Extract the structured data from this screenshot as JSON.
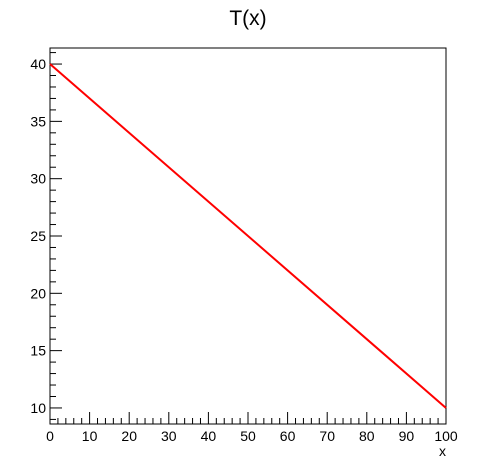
{
  "chart_data": {
    "type": "line",
    "title": "T(x)",
    "xlabel": "x",
    "ylabel": "",
    "xlim": [
      0,
      100
    ],
    "ylim": [
      8.6,
      41.4
    ],
    "x_ticks": [
      0,
      10,
      20,
      30,
      40,
      50,
      60,
      70,
      80,
      90,
      100
    ],
    "x_tick_labels": [
      "0",
      "10",
      "20",
      "30",
      "40",
      "50",
      "60",
      "70",
      "80",
      "90",
      "100"
    ],
    "y_ticks": [
      10,
      15,
      20,
      25,
      30,
      35,
      40
    ],
    "y_tick_labels": [
      "10",
      "15",
      "20",
      "25",
      "30",
      "35",
      "40"
    ],
    "grid": false,
    "legend": "none",
    "series": [
      {
        "color": "#ff0000",
        "x": [
          0,
          100
        ],
        "y": [
          40,
          10
        ]
      }
    ]
  }
}
